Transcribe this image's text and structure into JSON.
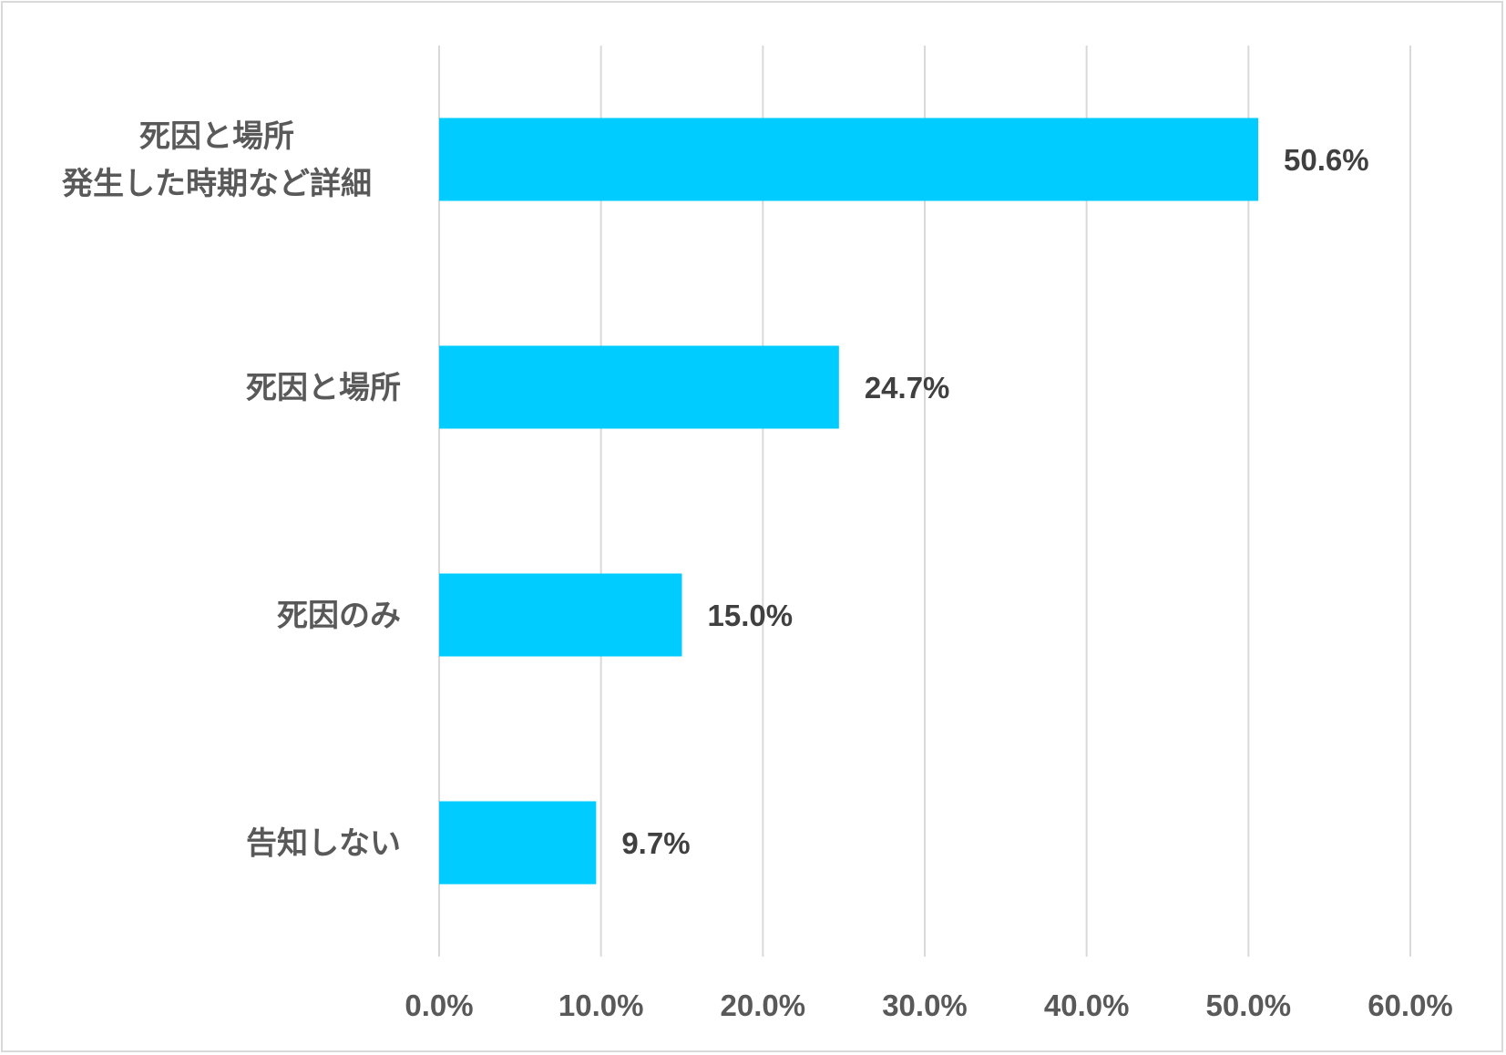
{
  "chart_data": {
    "type": "bar",
    "orientation": "horizontal",
    "categories": [
      [
        "死因と場所",
        "発生した時期など詳細"
      ],
      [
        "死因と場所"
      ],
      [
        "死因のみ"
      ],
      [
        "告知しない"
      ]
    ],
    "values": [
      50.6,
      24.7,
      15.0,
      9.7
    ],
    "data_labels": [
      "50.6%",
      "24.7%",
      "15.0%",
      "9.7%"
    ],
    "x_ticks": [
      "0.0%",
      "10.0%",
      "20.0%",
      "30.0%",
      "40.0%",
      "50.0%",
      "60.0%"
    ],
    "xlim": [
      0,
      60
    ],
    "grid": true,
    "legend": "none",
    "title": "",
    "xlabel": "",
    "ylabel": "",
    "colors": {
      "bar": "#00ccff",
      "grid": "#d9d9d9",
      "text": "#595959",
      "data_label": "#404040"
    }
  }
}
